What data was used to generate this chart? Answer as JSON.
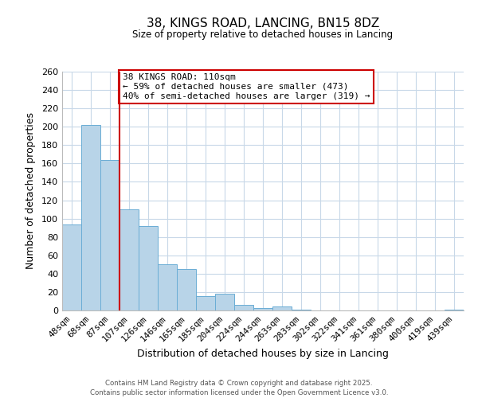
{
  "title": "38, KINGS ROAD, LANCING, BN15 8DZ",
  "subtitle": "Size of property relative to detached houses in Lancing",
  "xlabel": "Distribution of detached houses by size in Lancing",
  "ylabel": "Number of detached properties",
  "bar_color": "#b8d4e8",
  "bar_edge_color": "#6aadd5",
  "categories": [
    "48sqm",
    "68sqm",
    "87sqm",
    "107sqm",
    "126sqm",
    "146sqm",
    "165sqm",
    "185sqm",
    "204sqm",
    "224sqm",
    "244sqm",
    "263sqm",
    "283sqm",
    "302sqm",
    "322sqm",
    "341sqm",
    "361sqm",
    "380sqm",
    "400sqm",
    "419sqm",
    "439sqm"
  ],
  "values": [
    94,
    202,
    164,
    110,
    92,
    50,
    45,
    16,
    18,
    6,
    3,
    4,
    1,
    0,
    0,
    0,
    0,
    0,
    0,
    0,
    1
  ],
  "vline_bar_index": 3,
  "vline_color": "#cc0000",
  "annotation_line1": "38 KINGS ROAD: 110sqm",
  "annotation_line2": "← 59% of detached houses are smaller (473)",
  "annotation_line3": "40% of semi-detached houses are larger (319) →",
  "annotation_box_color": "#ffffff",
  "annotation_box_edge": "#cc0000",
  "ylim": [
    0,
    260
  ],
  "yticks": [
    0,
    20,
    40,
    60,
    80,
    100,
    120,
    140,
    160,
    180,
    200,
    220,
    240,
    260
  ],
  "footer1": "Contains HM Land Registry data © Crown copyright and database right 2025.",
  "footer2": "Contains public sector information licensed under the Open Government Licence v3.0.",
  "background_color": "#ffffff",
  "grid_color": "#c8d8e8"
}
